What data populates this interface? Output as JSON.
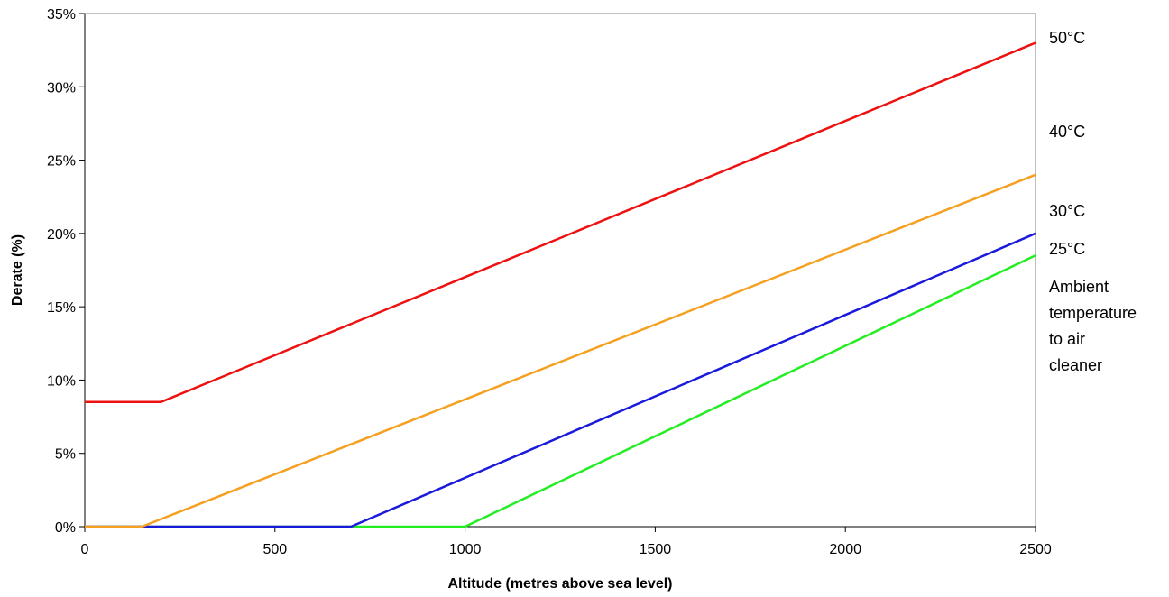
{
  "chart_data": {
    "type": "line",
    "title": "",
    "xlabel": "Altitude (metres above sea level)",
    "ylabel": "Derate (%)",
    "xlim": [
      0,
      2500
    ],
    "ylim": [
      0,
      35
    ],
    "x_ticks": [
      0,
      500,
      1000,
      1500,
      2000,
      2500
    ],
    "y_ticks": [
      0,
      5,
      10,
      15,
      20,
      25,
      30,
      35
    ],
    "y_tick_suffix": "%",
    "grid": false,
    "legend": "none",
    "series": [
      {
        "name": "50°C",
        "color": "#ee1111",
        "points": [
          [
            0,
            8.5
          ],
          [
            200,
            8.5
          ],
          [
            2500,
            33
          ]
        ]
      },
      {
        "name": "40°C",
        "color": "#f5a020",
        "points": [
          [
            0,
            0
          ],
          [
            150,
            0
          ],
          [
            2500,
            24
          ]
        ]
      },
      {
        "name": "30°C",
        "color": "#1a1adc",
        "points": [
          [
            0,
            0
          ],
          [
            700,
            0
          ],
          [
            2500,
            20
          ]
        ]
      },
      {
        "name": "25°C",
        "color": "#22ee22",
        "points": [
          [
            0,
            0
          ],
          [
            1000,
            0
          ],
          [
            2500,
            18.5
          ]
        ]
      }
    ],
    "annotation_lines": [
      "Ambient",
      "temperature",
      "to air",
      "cleaner"
    ]
  }
}
